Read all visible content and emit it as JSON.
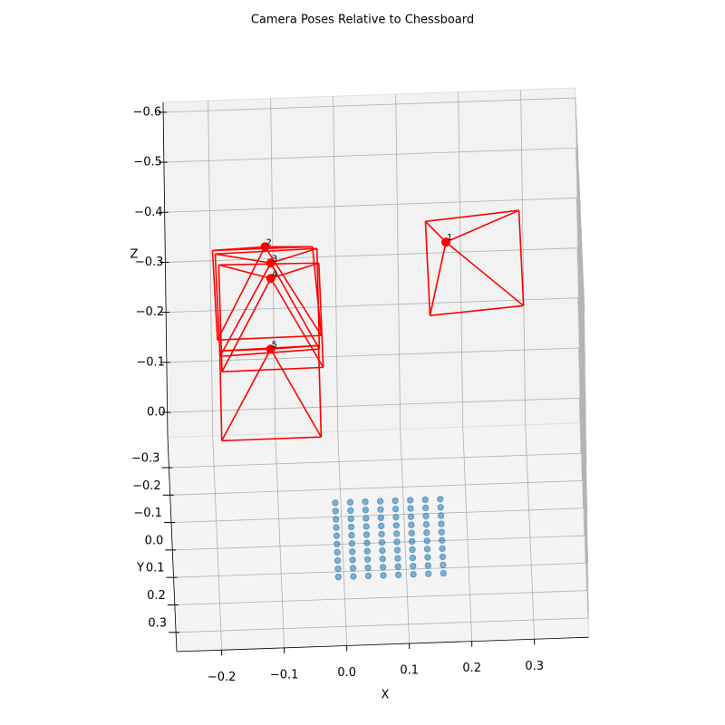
{
  "chart_data": {
    "type": "scatter3d",
    "title": "Camera Poses Relative to Chessboard",
    "xlabel": "X",
    "ylabel": "Y",
    "zlabel": "Z",
    "xlim": [
      -0.272,
      0.387
    ],
    "ylim": [
      -0.41,
      0.37
    ],
    "zlim": [
      0.05,
      -0.62
    ],
    "xticks": [
      {
        "value": -0.2,
        "label": "−0.2"
      },
      {
        "value": -0.1,
        "label": "−0.1"
      },
      {
        "value": 0,
        "label": "0.0"
      },
      0.1,
      0.2,
      0.3
    ],
    "yticks": [
      {
        "value": -0.3,
        "label": "−0.3"
      },
      {
        "value": -0.2,
        "label": "−0.2"
      },
      {
        "value": -0.1,
        "label": "−0.1"
      },
      {
        "value": 0,
        "label": "0.0"
      },
      0.1,
      0.2,
      0.3
    ],
    "zticks": [
      {
        "value": 0,
        "label": "0.0"
      },
      {
        "value": -0.1,
        "label": "−0.1"
      },
      {
        "value": -0.2,
        "label": "−0.2"
      },
      {
        "value": -0.3,
        "label": "−0.3"
      },
      {
        "value": -0.4,
        "label": "−0.4"
      },
      {
        "value": -0.5,
        "label": "−0.5"
      },
      {
        "value": -0.6,
        "label": "−0.6"
      }
    ],
    "grid": true,
    "chessboard": {
      "color": "#1f77b4",
      "x": [
        -0.01,
        0.014,
        0.038,
        0.062,
        0.086,
        0.11,
        0.134,
        0.158,
        -0.01,
        0.014,
        0.038,
        0.062,
        0.086,
        0.11,
        0.134,
        0.158,
        -0.01,
        0.014,
        0.038,
        0.062,
        0.086,
        0.11,
        0.134,
        0.158,
        -0.01,
        0.014,
        0.038,
        0.062,
        0.086,
        0.11,
        0.134,
        0.158,
        -0.01,
        0.014,
        0.038,
        0.062,
        0.086,
        0.11,
        0.134,
        0.158,
        -0.01,
        0.014,
        0.038,
        0.062,
        0.086,
        0.11,
        0.134,
        0.158,
        -0.01,
        0.014,
        0.038,
        0.062,
        0.086,
        0.11,
        0.134,
        0.158,
        -0.01,
        0.014,
        0.038,
        0.062,
        0.086,
        0.11,
        0.134,
        0.158,
        -0.01,
        0.014,
        0.038,
        0.062,
        0.086,
        0.11,
        0.134,
        0.158,
        -0.01,
        0.014,
        0.038,
        0.062,
        0.086,
        0.11,
        0.134,
        0.158
      ],
      "y": [
        -0.06,
        -0.06,
        -0.06,
        -0.06,
        -0.06,
        -0.06,
        -0.06,
        -0.06,
        -0.03,
        -0.03,
        -0.03,
        -0.03,
        -0.03,
        -0.03,
        -0.03,
        -0.03,
        0,
        0,
        0,
        0,
        0,
        0,
        0,
        0,
        0.03,
        0.03,
        0.03,
        0.03,
        0.03,
        0.03,
        0.03,
        0.03,
        0.06,
        0.06,
        0.06,
        0.06,
        0.06,
        0.06,
        0.06,
        0.06,
        0.09,
        0.09,
        0.09,
        0.09,
        0.09,
        0.09,
        0.09,
        0.09,
        0.12,
        0.12,
        0.12,
        0.12,
        0.12,
        0.12,
        0.12,
        0.12,
        0.15,
        0.15,
        0.15,
        0.15,
        0.15,
        0.15,
        0.15,
        0.15,
        0.18,
        0.18,
        0.18,
        0.18,
        0.18,
        0.18,
        0.18,
        0.18,
        0.21,
        0.21,
        0.21,
        0.21,
        0.21,
        0.21,
        0.21,
        0.21
      ],
      "z": [
        0,
        0,
        0,
        0,
        0,
        0,
        0,
        0,
        0,
        0,
        0,
        0,
        0,
        0,
        0,
        0,
        0,
        0,
        0,
        0,
        0,
        0,
        0,
        0,
        0,
        0,
        0,
        0,
        0,
        0,
        0,
        0,
        0,
        0,
        0,
        0,
        0,
        0,
        0,
        0,
        0,
        0,
        0,
        0,
        0,
        0,
        0,
        0,
        0,
        0,
        0,
        0,
        0,
        0,
        0,
        0,
        0,
        0,
        0,
        0,
        0,
        0,
        0,
        0,
        0,
        0,
        0,
        0,
        0,
        0,
        0,
        0,
        0,
        0,
        0,
        0,
        0,
        0,
        0,
        0
      ]
    },
    "cameras": [
      {
        "label": "1",
        "color": "#ff0000",
        "center": [
          0.174,
          -0.175,
          -0.45
        ],
        "corners": [
          [
            0.145,
            -0.435,
            -0.35
          ],
          [
            0.295,
            -0.463,
            -0.35
          ],
          [
            0.296,
            -0.116,
            -0.35
          ],
          [
            0.146,
            -0.092,
            -0.35
          ]
        ]
      },
      {
        "label": "2",
        "color": "#ff0000",
        "center": [
          -0.115,
          -0.181,
          -0.45
        ],
        "corners": [
          [
            -0.197,
            -0.356,
            -0.35
          ],
          [
            -0.037,
            -0.357,
            -0.35
          ],
          [
            -0.029,
            -0.033,
            -0.35
          ],
          [
            -0.195,
            -0.03,
            -0.35
          ]
        ]
      },
      {
        "label": "3",
        "color": "#ff0000",
        "center": [
          -0.107,
          -0.121,
          -0.45
        ],
        "corners": [
          [
            -0.193,
            -0.343,
            -0.35
          ],
          [
            -0.03,
            -0.35,
            -0.35
          ],
          [
            -0.033,
            0.016,
            -0.35
          ],
          [
            -0.192,
            0.03,
            -0.35
          ]
        ]
      },
      {
        "label": "4",
        "color": "#ff0000",
        "center": [
          -0.108,
          -0.065,
          -0.45
        ],
        "corners": [
          [
            -0.188,
            -0.303,
            -0.35
          ],
          [
            -0.028,
            -0.297,
            -0.35
          ],
          [
            -0.028,
            0.083,
            -0.35
          ],
          [
            -0.19,
            0.086,
            -0.35
          ]
        ]
      },
      {
        "label": "5",
        "color": "#ff0000",
        "center": [
          -0.113,
          0.192,
          -0.45
        ],
        "corners": [
          [
            -0.192,
            0.01,
            -0.35
          ],
          [
            -0.034,
            0.003,
            -0.35
          ],
          [
            -0.036,
            0.336,
            -0.35
          ],
          [
            -0.195,
            0.337,
            -0.35
          ]
        ]
      }
    ]
  }
}
